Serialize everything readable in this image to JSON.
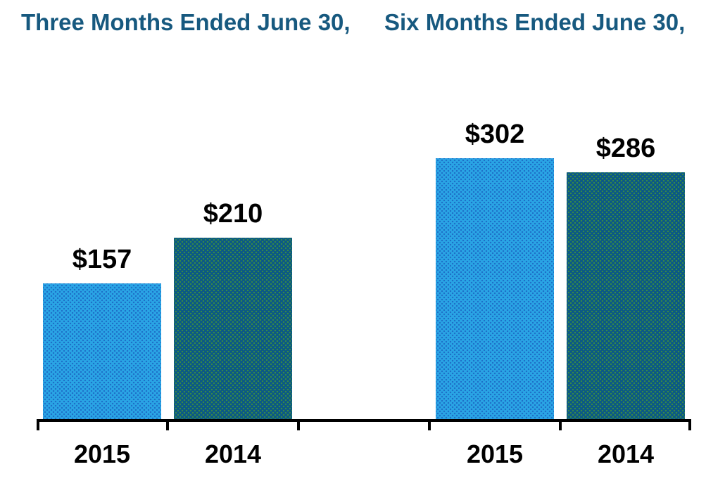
{
  "page": {
    "background": "#FFFFFF"
  },
  "titles": {
    "left": "Three Months Ended June 30,",
    "right": "Six Months Ended June 30,"
  },
  "colors": {
    "title_text": "#17597F",
    "value_label_text": "#000000",
    "category_label_text": "#000000",
    "axis": "#000000",
    "series": {
      "2015": {
        "fill": "#2AA5E5",
        "dot": "#1E6EC8"
      },
      "2014": {
        "fill": "#0A5886",
        "dot": "#3A8B46"
      }
    }
  },
  "chart_data": {
    "type": "bar",
    "value_prefix": "$",
    "groups": [
      {
        "title": "Three Months Ended June 30,",
        "categories": [
          "2015",
          "2014"
        ],
        "values": [
          157,
          210
        ],
        "data_labels": [
          "$157",
          "$210"
        ]
      },
      {
        "title": "Six Months Ended June 30,",
        "categories": [
          "2015",
          "2014"
        ],
        "values": [
          302,
          286
        ],
        "data_labels": [
          "$302",
          "$286"
        ]
      }
    ],
    "series_legend": [
      {
        "name": "2015",
        "color": "light-blue-dotted"
      },
      {
        "name": "2014",
        "color": "dark-blue-dotted"
      }
    ],
    "x_tick_labels": [
      "2015",
      "2014",
      "2015",
      "2014"
    ],
    "ylim": [
      0,
      330
    ],
    "grid": false,
    "legend": false
  }
}
